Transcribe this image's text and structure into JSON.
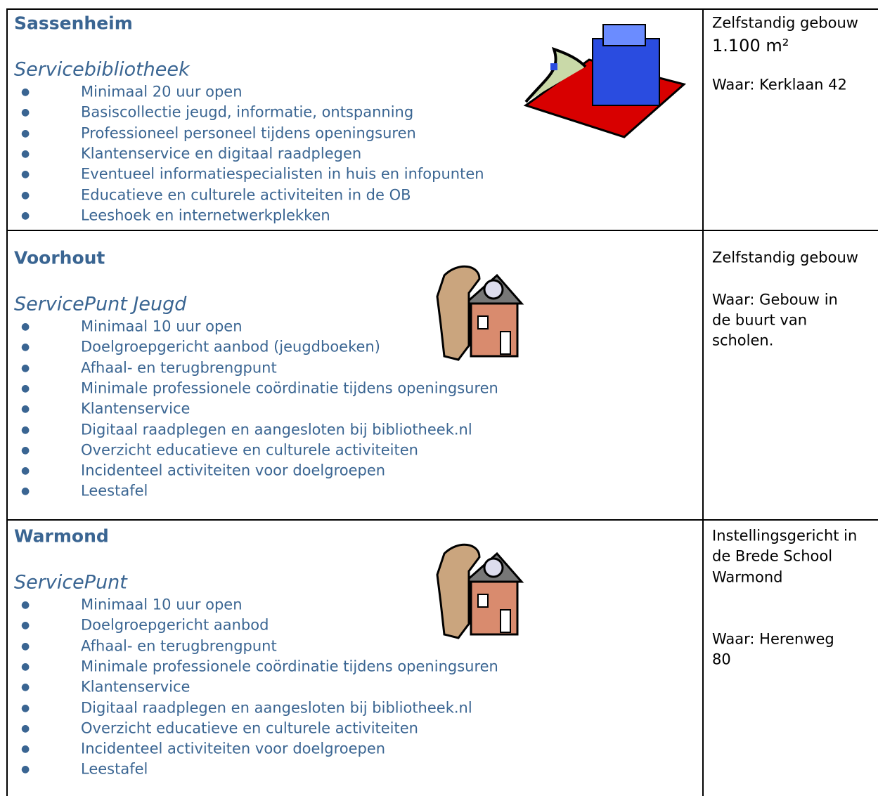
{
  "rows": [
    {
      "title": "Sassenheim",
      "subtitle": "Servicebibliotheek",
      "items": [
        "Minimaal 20 uur open",
        "Basiscollectie jeugd, informatie, ontspanning",
        "Professioneel personeel tijdens openingsuren",
        "Klantenservice en digitaal raadplegen",
        "Eventueel informatiespecialisten in huis en infopunten",
        "Educatieve en culturele activiteiten in de OB",
        "Leeshoek en internetwerkplekken"
      ],
      "info": [
        "Zelfstandig gebouw",
        "1.100 m²",
        "Waar: Kerklaan 42"
      ]
    },
    {
      "title": "Voorhout",
      "subtitle": "ServicePunt Jeugd",
      "items": [
        "Minimaal 10 uur open",
        "Doelgroepgericht aanbod (jeugdboeken)",
        "Afhaal- en terugbrengpunt",
        "Minimale professionele coördinatie tijdens openingsuren",
        "Klantenservice",
        "Digitaal raadplegen en aangesloten bij bibliotheek.nl",
        "Overzicht educatieve en culturele activiteiten",
        "Incidenteel activiteiten voor doelgroepen",
        "Leestafel"
      ],
      "info": [
        "Zelfstandig gebouw",
        "Waar: Gebouw in",
        "de buurt van",
        "scholen."
      ]
    },
    {
      "title": "Warmond",
      "subtitle": "ServicePunt",
      "items": [
        "Minimaal 10 uur open",
        "Doelgroepgericht aanbod",
        "Afhaal- en terugbrengpunt",
        "Minimale professionele coördinatie tijdens openingsuren",
        "Klantenservice",
        "Digitaal raadplegen en aangesloten bij bibliotheek.nl",
        "Overzicht educatieve en culturele activiteiten",
        "Incidenteel activiteiten voor doelgroepen",
        "Leestafel"
      ],
      "info": [
        "Instellingsgericht in",
        "de Brede School",
        "Warmond",
        "Waar: Herenweg",
        "80"
      ]
    }
  ]
}
